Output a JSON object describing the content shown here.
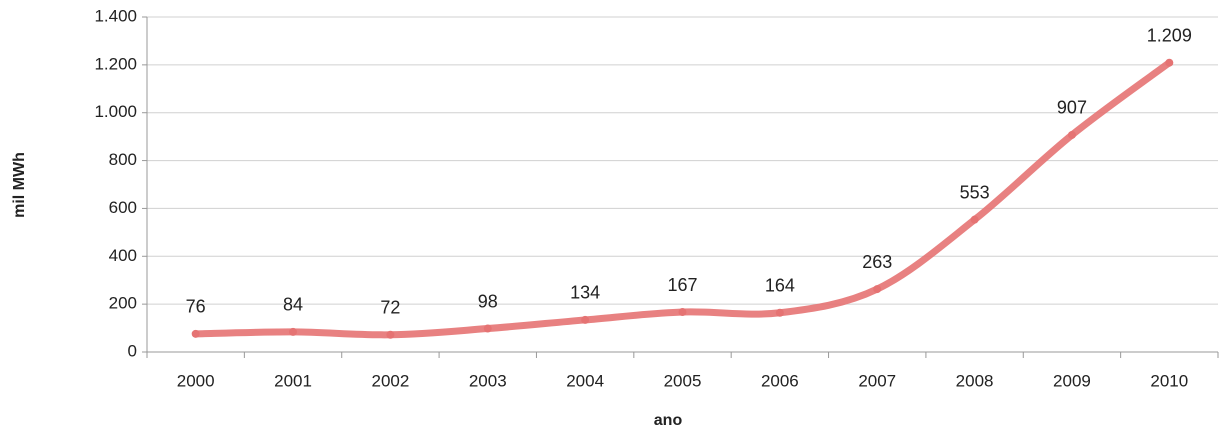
{
  "chart_data": {
    "type": "line",
    "y_label": "mil MWh",
    "x_label": "ano",
    "categories": [
      "2000",
      "2001",
      "2002",
      "2003",
      "2004",
      "2005",
      "2006",
      "2007",
      "2008",
      "2009",
      "2010"
    ],
    "values": [
      76,
      84,
      72,
      98,
      134,
      167,
      164,
      263,
      553,
      907,
      1209
    ],
    "value_labels": [
      "76",
      "84",
      "72",
      "98",
      "134",
      "167",
      "164",
      "263",
      "553",
      "907",
      "1.209"
    ],
    "color": "#e57373",
    "ylim": [
      0,
      1400
    ],
    "yticks": [
      0,
      200,
      400,
      600,
      800,
      {
        "value": 1000,
        "label": "1.000"
      },
      {
        "value": 1200,
        "label": "1.200"
      },
      {
        "value": 1400,
        "label": "1.400"
      }
    ],
    "grid": true
  }
}
